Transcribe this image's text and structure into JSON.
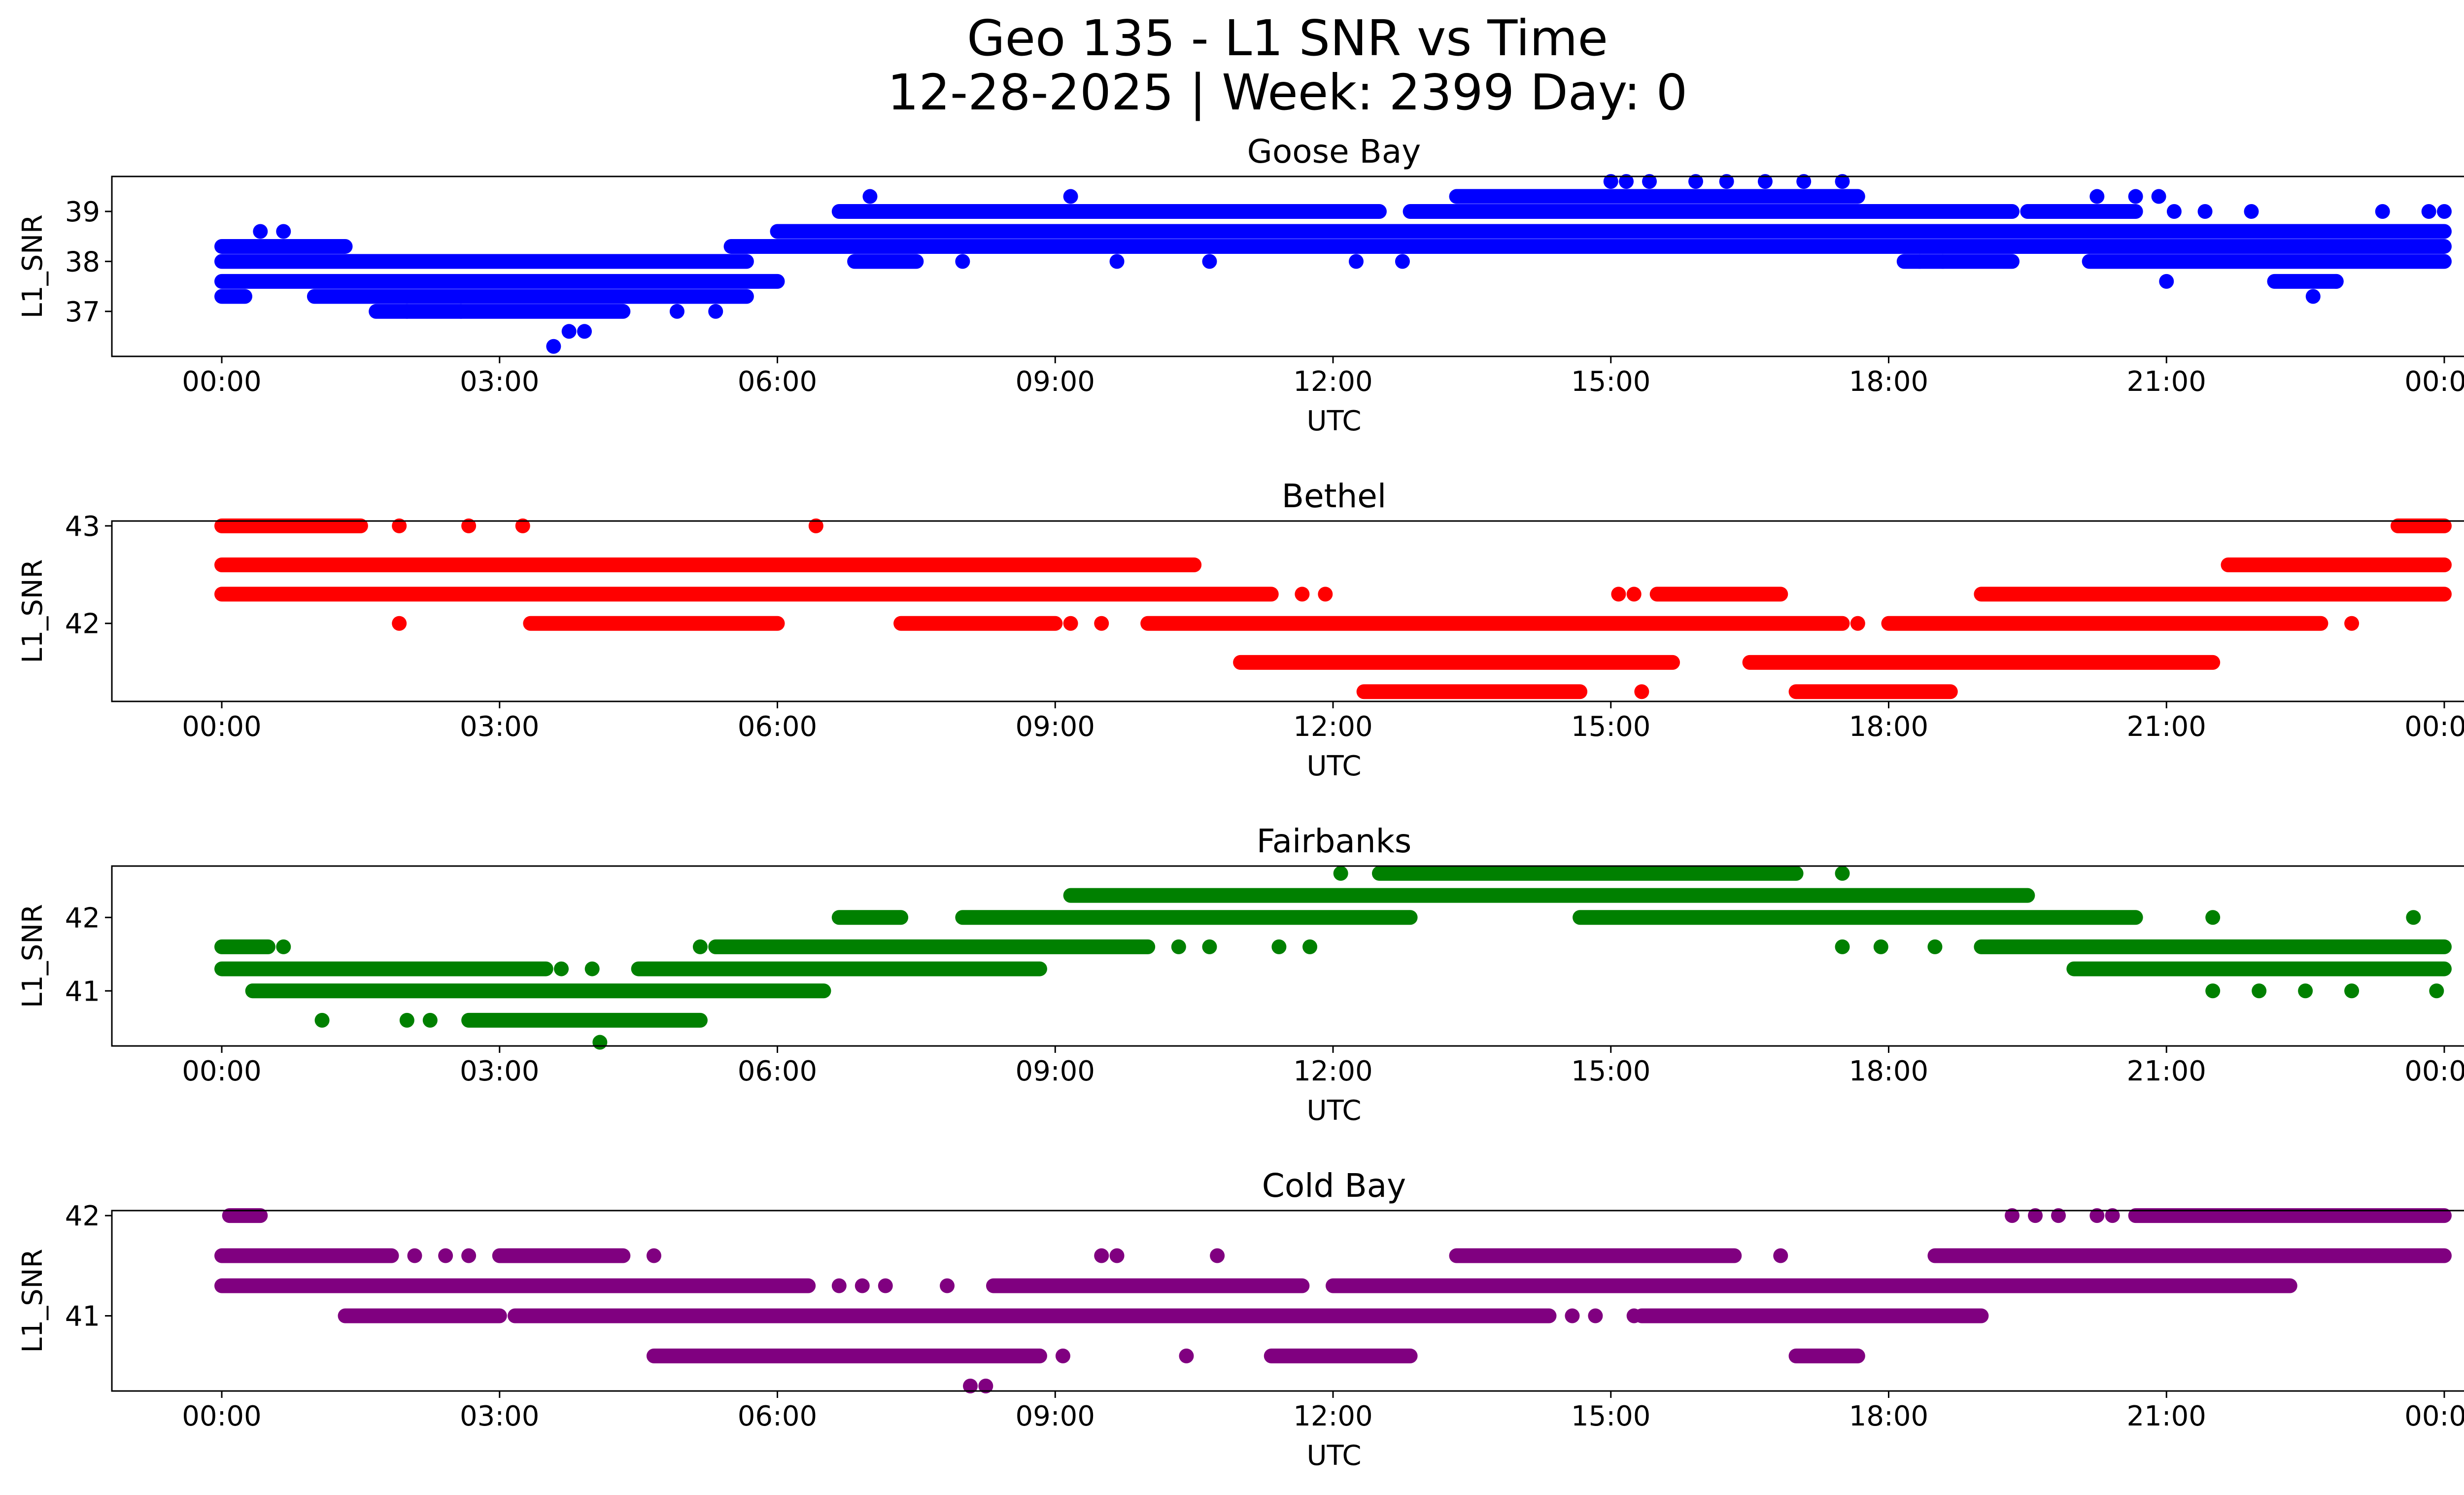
{
  "figure": {
    "title_line1": "Geo 135 - L1 SNR vs Time",
    "title_line2": "12-28-2025 | Week: 2399 Day: 0"
  },
  "chart_data": [
    {
      "type": "scatter",
      "title": "Goose Bay",
      "xlabel": "UTC",
      "ylabel": "L1_SNR",
      "color": "#0000ff",
      "xlim": [
        "23:30",
        "24:40"
      ],
      "ylim": [
        36.1,
        39.7
      ],
      "xticks": [
        "00:00",
        "03:00",
        "06:00",
        "09:00",
        "12:00",
        "15:00",
        "18:00",
        "21:00",
        "00:00"
      ],
      "yticks": [
        37,
        38,
        39
      ],
      "levels": [
        36.3,
        36.6,
        37.0,
        37.3,
        37.6,
        38.0,
        38.3,
        38.6,
        39.0,
        39.3,
        39.6
      ],
      "bands": [
        {
          "y": 38.3,
          "from": "00:00",
          "to": "01:20"
        },
        {
          "y": 38.0,
          "from": "00:00",
          "to": "05:40"
        },
        {
          "y": 37.6,
          "from": "00:00",
          "to": "06:00"
        },
        {
          "y": 37.3,
          "from": "00:00",
          "to": "00:15"
        },
        {
          "y": 37.3,
          "from": "01:00",
          "to": "05:40"
        },
        {
          "y": 37.0,
          "from": "01:40",
          "to": "04:20"
        },
        {
          "y": 38.3,
          "from": "05:30",
          "to": "06:50"
        },
        {
          "y": 38.6,
          "from": "06:00",
          "to": "24:00"
        },
        {
          "y": 38.3,
          "from": "06:50",
          "to": "24:00"
        },
        {
          "y": 39.0,
          "from": "06:40",
          "to": "12:30"
        },
        {
          "y": 38.0,
          "from": "06:50",
          "to": "07:30"
        },
        {
          "y": 39.0,
          "from": "12:50",
          "to": "19:20"
        },
        {
          "y": 39.3,
          "from": "13:20",
          "to": "17:40"
        },
        {
          "y": 38.0,
          "from": "18:10",
          "to": "19:20"
        },
        {
          "y": 38.0,
          "from": "20:10",
          "to": "24:00"
        },
        {
          "y": 39.0,
          "from": "19:30",
          "to": "20:40"
        },
        {
          "y": 37.6,
          "from": "22:10",
          "to": "22:50"
        }
      ],
      "points": [
        [
          "00:25",
          38.6
        ],
        [
          "00:40",
          38.6
        ],
        [
          "02:00",
          37.0
        ],
        [
          "02:35",
          37.0
        ],
        [
          "03:35",
          36.3
        ],
        [
          "03:45",
          36.6
        ],
        [
          "03:55",
          36.6
        ],
        [
          "04:55",
          37.0
        ],
        [
          "05:20",
          37.0
        ],
        [
          "07:00",
          39.3
        ],
        [
          "08:00",
          38.0
        ],
        [
          "09:10",
          39.3
        ],
        [
          "09:40",
          38.0
        ],
        [
          "10:40",
          38.0
        ],
        [
          "12:15",
          38.0
        ],
        [
          "12:45",
          38.0
        ],
        [
          "13:40",
          38.3
        ],
        [
          "14:05",
          38.3
        ],
        [
          "15:00",
          39.6
        ],
        [
          "15:10",
          39.6
        ],
        [
          "15:25",
          39.6
        ],
        [
          "15:55",
          39.6
        ],
        [
          "16:15",
          39.6
        ],
        [
          "16:40",
          39.6
        ],
        [
          "17:05",
          39.6
        ],
        [
          "17:30",
          39.6
        ],
        [
          "18:20",
          38.0
        ],
        [
          "18:35",
          38.0
        ],
        [
          "20:15",
          39.3
        ],
        [
          "20:40",
          39.3
        ],
        [
          "20:55",
          39.3
        ],
        [
          "21:00",
          37.6
        ],
        [
          "21:05",
          39.0
        ],
        [
          "21:25",
          39.0
        ],
        [
          "21:55",
          39.0
        ],
        [
          "22:35",
          37.3
        ],
        [
          "22:50",
          37.6
        ],
        [
          "23:20",
          39.0
        ],
        [
          "23:50",
          39.0
        ],
        [
          "24:00",
          39.0
        ]
      ]
    },
    {
      "type": "scatter",
      "title": "Bethel",
      "xlabel": "UTC",
      "ylabel": "L1_SNR",
      "color": "#ff0000",
      "xlim": [
        "23:30",
        "24:40"
      ],
      "ylim": [
        41.2,
        43.05
      ],
      "xticks": [
        "00:00",
        "03:00",
        "06:00",
        "09:00",
        "12:00",
        "15:00",
        "18:00",
        "21:00",
        "00:00"
      ],
      "yticks": [
        42,
        43
      ],
      "levels": [
        41.3,
        41.6,
        42.0,
        42.3,
        42.6,
        43.0
      ],
      "bands": [
        {
          "y": 43.0,
          "from": "00:00",
          "to": "01:30"
        },
        {
          "y": 42.6,
          "from": "00:00",
          "to": "10:30"
        },
        {
          "y": 42.3,
          "from": "00:00",
          "to": "11:20"
        },
        {
          "y": 42.0,
          "from": "03:20",
          "to": "06:00"
        },
        {
          "y": 42.0,
          "from": "07:20",
          "to": "09:00"
        },
        {
          "y": 42.0,
          "from": "10:00",
          "to": "17:30"
        },
        {
          "y": 41.6,
          "from": "11:00",
          "to": "15:40"
        },
        {
          "y": 41.3,
          "from": "12:20",
          "to": "14:40"
        },
        {
          "y": 42.3,
          "from": "15:30",
          "to": "16:50"
        },
        {
          "y": 41.6,
          "from": "16:30",
          "to": "21:30"
        },
        {
          "y": 41.3,
          "from": "17:00",
          "to": "18:40"
        },
        {
          "y": 42.0,
          "from": "18:00",
          "to": "22:40"
        },
        {
          "y": 42.3,
          "from": "19:00",
          "to": "24:00"
        },
        {
          "y": 42.6,
          "from": "21:40",
          "to": "24:00"
        },
        {
          "y": 43.0,
          "from": "23:30",
          "to": "24:00"
        }
      ],
      "points": [
        [
          "01:55",
          43.0
        ],
        [
          "02:40",
          43.0
        ],
        [
          "03:15",
          43.0
        ],
        [
          "06:25",
          43.0
        ],
        [
          "01:55",
          42.0
        ],
        [
          "09:10",
          42.0
        ],
        [
          "09:30",
          42.0
        ],
        [
          "11:40",
          42.3
        ],
        [
          "11:55",
          42.3
        ],
        [
          "15:05",
          42.3
        ],
        [
          "15:15",
          42.3
        ],
        [
          "15:20",
          41.3
        ],
        [
          "17:40",
          42.0
        ],
        [
          "23:00",
          42.0
        ]
      ]
    },
    {
      "type": "scatter",
      "title": "Fairbanks",
      "xlabel": "UTC",
      "ylabel": "L1_SNR",
      "color": "#008000",
      "xlim": [
        "23:30",
        "24:40"
      ],
      "ylim": [
        40.25,
        42.7
      ],
      "xticks": [
        "00:00",
        "03:00",
        "06:00",
        "09:00",
        "12:00",
        "15:00",
        "18:00",
        "21:00",
        "00:00"
      ],
      "yticks": [
        41,
        42
      ],
      "levels": [
        40.3,
        40.6,
        41.0,
        41.3,
        41.6,
        42.0,
        42.3,
        42.6
      ],
      "bands": [
        {
          "y": 41.6,
          "from": "00:00",
          "to": "00:30"
        },
        {
          "y": 41.3,
          "from": "00:00",
          "to": "03:30"
        },
        {
          "y": 41.0,
          "from": "00:20",
          "to": "06:30"
        },
        {
          "y": 40.6,
          "from": "02:40",
          "to": "05:10"
        },
        {
          "y": 41.3,
          "from": "04:30",
          "to": "08:50"
        },
        {
          "y": 41.6,
          "from": "05:20",
          "to": "10:00"
        },
        {
          "y": 42.0,
          "from": "06:40",
          "to": "07:20"
        },
        {
          "y": 42.0,
          "from": "08:00",
          "to": "12:50"
        },
        {
          "y": 42.3,
          "from": "09:10",
          "to": "19:30"
        },
        {
          "y": 42.6,
          "from": "12:30",
          "to": "17:00"
        },
        {
          "y": 42.0,
          "from": "14:40",
          "to": "20:40"
        },
        {
          "y": 41.6,
          "from": "19:00",
          "to": "24:00"
        },
        {
          "y": 41.3,
          "from": "20:00",
          "to": "24:00"
        }
      ],
      "points": [
        [
          "00:40",
          41.6
        ],
        [
          "01:05",
          40.6
        ],
        [
          "02:00",
          40.6
        ],
        [
          "02:15",
          40.6
        ],
        [
          "04:05",
          40.3
        ],
        [
          "03:40",
          41.3
        ],
        [
          "04:00",
          41.3
        ],
        [
          "05:10",
          41.6
        ],
        [
          "10:20",
          41.6
        ],
        [
          "10:40",
          41.6
        ],
        [
          "11:25",
          41.6
        ],
        [
          "11:45",
          41.6
        ],
        [
          "12:05",
          42.6
        ],
        [
          "17:30",
          42.6
        ],
        [
          "17:30",
          41.6
        ],
        [
          "17:55",
          41.6
        ],
        [
          "18:30",
          41.6
        ],
        [
          "21:30",
          42.0
        ],
        [
          "21:30",
          41.0
        ],
        [
          "22:00",
          41.0
        ],
        [
          "22:30",
          41.0
        ],
        [
          "23:00",
          41.0
        ],
        [
          "23:40",
          42.0
        ],
        [
          "23:55",
          41.0
        ]
      ]
    },
    {
      "type": "scatter",
      "title": "Cold Bay",
      "xlabel": "UTC",
      "ylabel": "L1_SNR",
      "color": "#800080",
      "xlim": [
        "23:30",
        "24:40"
      ],
      "ylim": [
        40.25,
        42.05
      ],
      "xticks": [
        "00:00",
        "03:00",
        "06:00",
        "09:00",
        "12:00",
        "15:00",
        "18:00",
        "21:00",
        "00:00"
      ],
      "yticks": [
        41,
        42
      ],
      "levels": [
        40.3,
        40.6,
        41.0,
        41.3,
        41.6,
        42.0
      ],
      "bands": [
        {
          "y": 42.0,
          "from": "00:05",
          "to": "00:25"
        },
        {
          "y": 41.6,
          "from": "00:00",
          "to": "01:50"
        },
        {
          "y": 41.3,
          "from": "00:00",
          "to": "06:20"
        },
        {
          "y": 41.0,
          "from": "01:20",
          "to": "03:00"
        },
        {
          "y": 41.0,
          "from": "03:10",
          "to": "14:20"
        },
        {
          "y": 41.6,
          "from": "03:00",
          "to": "04:20"
        },
        {
          "y": 40.6,
          "from": "04:40",
          "to": "08:50"
        },
        {
          "y": 41.3,
          "from": "08:20",
          "to": "11:40"
        },
        {
          "y": 40.6,
          "from": "11:20",
          "to": "12:50"
        },
        {
          "y": 41.3,
          "from": "12:00",
          "to": "22:20"
        },
        {
          "y": 41.6,
          "from": "13:20",
          "to": "16:20"
        },
        {
          "y": 41.0,
          "from": "15:20",
          "to": "19:00"
        },
        {
          "y": 40.6,
          "from": "17:00",
          "to": "17:40"
        },
        {
          "y": 41.6,
          "from": "18:30",
          "to": "24:00"
        },
        {
          "y": 42.0,
          "from": "20:40",
          "to": "24:00"
        }
      ],
      "points": [
        [
          "02:05",
          41.6
        ],
        [
          "02:25",
          41.6
        ],
        [
          "02:40",
          41.6
        ],
        [
          "04:40",
          41.6
        ],
        [
          "06:40",
          41.3
        ],
        [
          "06:55",
          41.3
        ],
        [
          "07:10",
          41.3
        ],
        [
          "07:50",
          41.3
        ],
        [
          "08:05",
          40.3
        ],
        [
          "08:15",
          40.3
        ],
        [
          "09:05",
          40.6
        ],
        [
          "09:30",
          41.6
        ],
        [
          "09:40",
          41.6
        ],
        [
          "10:25",
          40.6
        ],
        [
          "10:45",
          41.6
        ],
        [
          "14:35",
          41.0
        ],
        [
          "14:50",
          41.0
        ],
        [
          "15:15",
          41.0
        ],
        [
          "16:50",
          41.6
        ],
        [
          "19:20",
          42.0
        ],
        [
          "19:35",
          42.0
        ],
        [
          "19:50",
          42.0
        ],
        [
          "20:15",
          42.0
        ],
        [
          "20:25",
          42.0
        ]
      ]
    }
  ]
}
